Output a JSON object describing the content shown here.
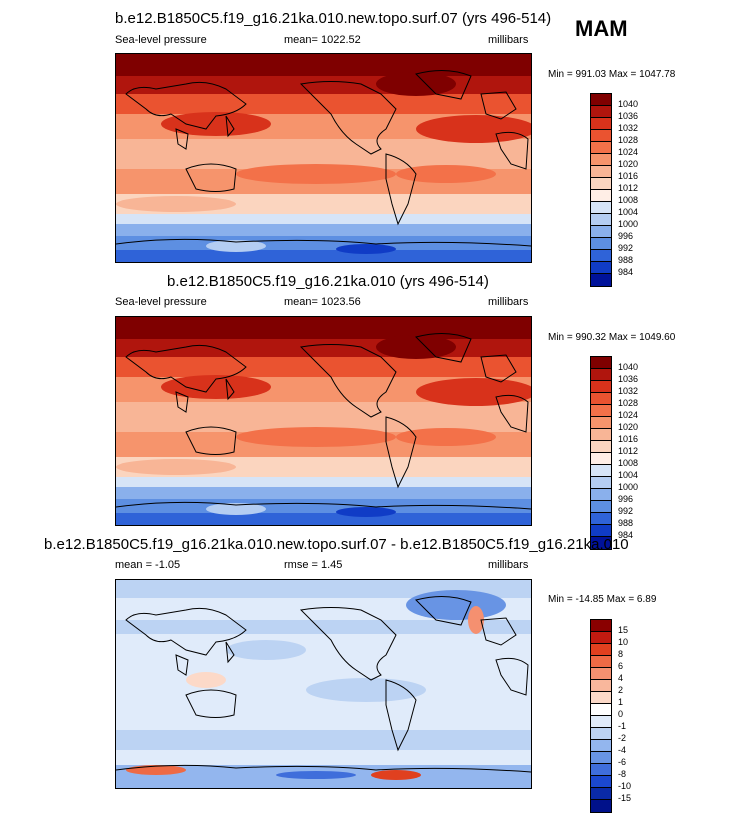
{
  "season": "MAM",
  "panels": [
    {
      "title": "b.e12.B1850C5.f19_g16.21ka.010.new.topo.surf.07 (yrs 496-514)",
      "left_label": "Sea-level pressure",
      "center_label": "mean= 1022.52",
      "right_label": "millibars",
      "minmax": "Min = 991.03 Max = 1047.78",
      "colorbar": {
        "labels": [
          "1040",
          "1036",
          "1032",
          "1028",
          "1024",
          "1020",
          "1016",
          "1012",
          "1008",
          "1004",
          "1000",
          "996",
          "992",
          "988",
          "984"
        ],
        "colors": [
          "#7f0000",
          "#b0150d",
          "#d8321b",
          "#ea5330",
          "#f37149",
          "#f6946c",
          "#f8b596",
          "#fbd5bf",
          "#ffeee6",
          "#d6e4f7",
          "#b4cdf2",
          "#8ab0ec",
          "#5d8fe2",
          "#2f63d8",
          "#103cc6",
          "#00129a"
        ]
      }
    },
    {
      "title": "b.e12.B1850C5.f19_g16.21ka.010 (yrs 496-514)",
      "left_label": "Sea-level pressure",
      "center_label": "mean= 1023.56",
      "right_label": "millibars",
      "minmax": "Min = 990.32 Max = 1049.60",
      "colorbar": {
        "labels": [
          "1040",
          "1036",
          "1032",
          "1028",
          "1024",
          "1020",
          "1016",
          "1012",
          "1008",
          "1004",
          "1000",
          "996",
          "992",
          "988",
          "984"
        ],
        "colors": [
          "#7f0000",
          "#b0150d",
          "#d8321b",
          "#ea5330",
          "#f37149",
          "#f6946c",
          "#f8b596",
          "#fbd5bf",
          "#ffeee6",
          "#d6e4f7",
          "#b4cdf2",
          "#8ab0ec",
          "#5d8fe2",
          "#2f63d8",
          "#103cc6",
          "#00129a"
        ]
      }
    },
    {
      "title": "b.e12.B1850C5.f19_g16.21ka.010.new.topo.surf.07 - b.e12.B1850C5.f19_g16.21ka.010",
      "left_label": "mean =  -1.05",
      "center_label": "rmse =   1.45",
      "right_label": "millibars",
      "minmax": "Min = -14.85 Max =   6.89",
      "colorbar": {
        "labels": [
          "15",
          "10",
          "8",
          "6",
          "4",
          "2",
          "1",
          "0",
          "-1",
          "-2",
          "-4",
          "-6",
          "-8",
          "-10",
          "-15"
        ],
        "colors": [
          "#8a0000",
          "#c11a10",
          "#e0401f",
          "#ee6a45",
          "#f59070",
          "#f9b79c",
          "#fcd9c8",
          "#ffffff",
          "#e0ebfa",
          "#bcd3f3",
          "#93b6ee",
          "#6894e4",
          "#3f6edb",
          "#1b48cf",
          "#0a2aa6",
          "#00118a"
        ]
      }
    }
  ],
  "colors": {
    "land_outline": "#000000"
  }
}
